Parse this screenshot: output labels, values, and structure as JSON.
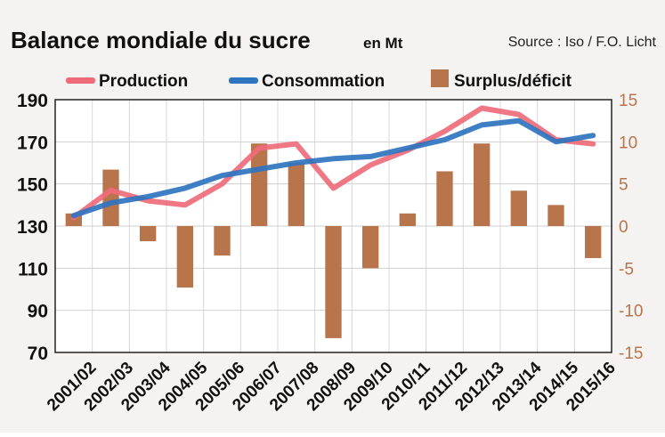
{
  "chart_data": {
    "type": "bar+line",
    "title": "Balance mondiale du sucre",
    "title_unit": "en Mt",
    "source": "Source : Iso / F.O. Licht",
    "categories": [
      "2001/02",
      "2002/03",
      "2003/04",
      "2004/05",
      "2005/06",
      "2006/07",
      "2007/08",
      "2008/09",
      "2009/10",
      "2010/11",
      "2011/12",
      "2012/13",
      "2013/14",
      "2014/15",
      "2015/16"
    ],
    "series": [
      {
        "name": "Production",
        "type": "line",
        "axis": "left",
        "color": "#ef6b7a",
        "values": [
          134,
          147,
          142,
          140,
          150,
          167,
          169,
          148,
          159,
          166,
          175,
          186,
          183,
          171,
          169
        ]
      },
      {
        "name": "Consommation",
        "type": "line",
        "axis": "left",
        "color": "#2f74bf",
        "values": [
          135,
          141,
          144,
          148,
          154,
          157,
          160,
          162,
          163,
          167,
          171,
          178,
          180,
          170,
          173
        ]
      },
      {
        "name": "Surplus/déficit",
        "type": "bar",
        "axis": "right",
        "color": "#b8754c",
        "values": [
          1.5,
          6.7,
          -1.8,
          -7.3,
          -3.5,
          9.8,
          7.5,
          -13.3,
          -5.0,
          1.5,
          6.5,
          9.8,
          4.2,
          2.5,
          -3.8
        ]
      }
    ],
    "y_left": {
      "min": 70,
      "max": 190,
      "ticks": [
        190,
        170,
        150,
        130,
        110,
        90,
        70
      ]
    },
    "y_right": {
      "min": -15,
      "max": 15,
      "ticks": [
        15,
        10,
        5,
        0,
        -5,
        -10,
        -15
      ]
    },
    "grid": true,
    "legend_position": "top"
  }
}
